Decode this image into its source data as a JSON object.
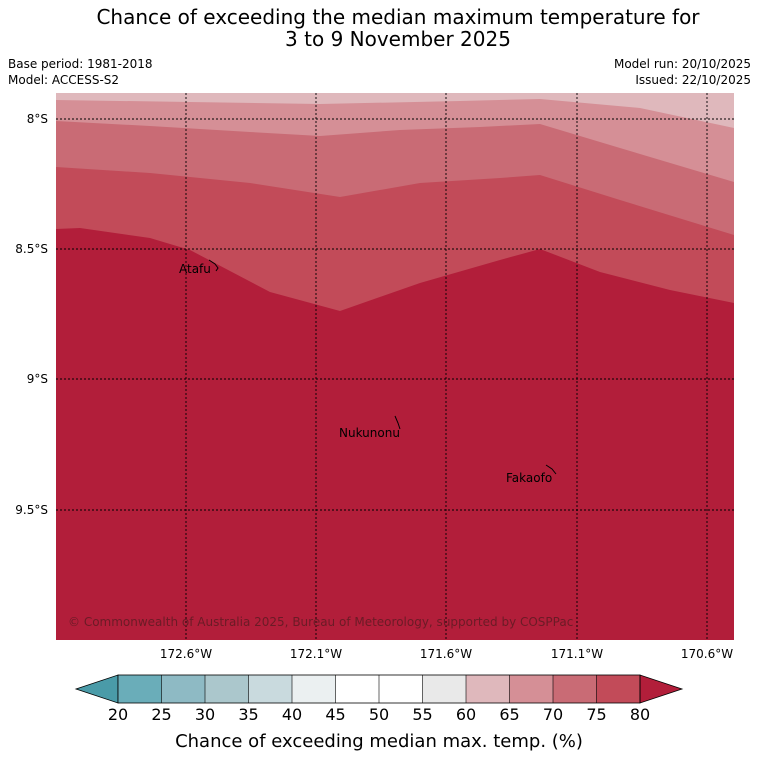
{
  "title": {
    "line1": "Chance of exceeding the median maximum temperature for",
    "line2": "3 to 9 November 2025"
  },
  "meta": {
    "base_period": "Base period: 1981-2018",
    "model": "Model: ACCESS-S2",
    "model_run": "Model run: 20/10/2025",
    "issued": "Issued: 22/10/2025"
  },
  "map": {
    "lat_labels": [
      "8°S",
      "8.5°S",
      "9°S",
      "9.5°S"
    ],
    "lon_labels": [
      "172.6°W",
      "172.1°W",
      "171.6°W",
      "171.1°W",
      "170.6°W"
    ],
    "places": [
      "Atafu",
      "Nukunonu",
      "Fakaofo"
    ],
    "copyright": "© Commonwealth of Australia 2025, Bureau of Meteorology, supported by COSPPac",
    "band_colors": [
      "#dfb8bc",
      "#d58f96",
      "#c96b75",
      "#c24b59",
      "#b21e3a"
    ]
  },
  "colorbar": {
    "ticks": [
      "20",
      "25",
      "30",
      "35",
      "40",
      "45",
      "50",
      "55",
      "60",
      "65",
      "70",
      "75",
      "80"
    ],
    "colors": [
      "#4a9ba8",
      "#6aadb9",
      "#8ebac4",
      "#abc7cc",
      "#c9dade",
      "#ebf0f1",
      "#ffffff",
      "#ffffff",
      "#e9e9e9",
      "#dfb8bc",
      "#d58f96",
      "#c96b75",
      "#c24b59",
      "#b21e3a"
    ],
    "label": "Chance of exceeding median max. temp. (%)"
  }
}
